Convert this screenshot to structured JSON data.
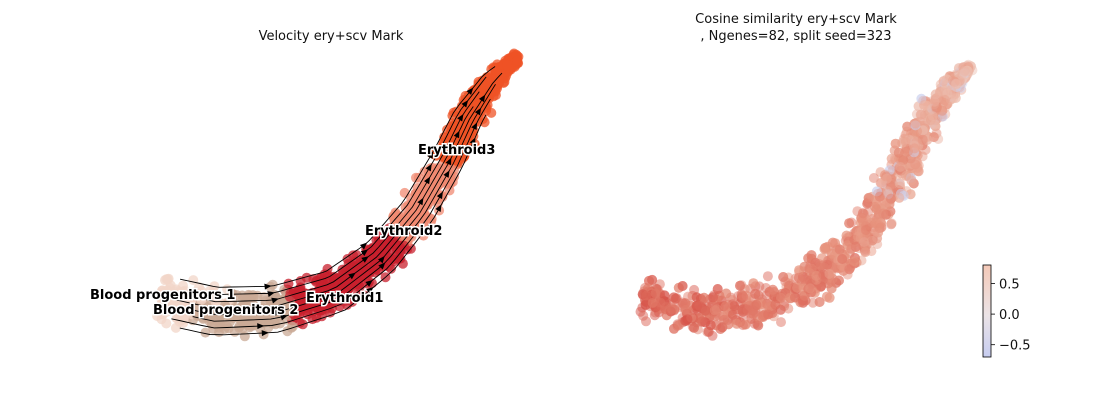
{
  "chart_data": [
    {
      "type": "scatter",
      "subtype": "velocity-streamline-embedding",
      "title": "Velocity ery+scv Mark",
      "xlabel": "",
      "ylabel": "",
      "axes_visible": false,
      "grid": false,
      "clusters": [
        {
          "name": "Blood progenitors 1",
          "color": "#f2d6c8"
        },
        {
          "name": "Blood progenitors 2",
          "color": "#c9a996"
        },
        {
          "name": "Erythroid1",
          "color": "#c8202e"
        },
        {
          "name": "Erythroid2",
          "color": "#f08a72"
        },
        {
          "name": "Erythroid3",
          "color": "#ef5326"
        }
      ]
    },
    {
      "type": "scatter",
      "subtype": "embedding-colored-by-value",
      "title_lines": [
        "Cosine similarity ery+scv Mark",
        ", Ngenes=82, split seed=323"
      ],
      "xlabel": "",
      "ylabel": "",
      "axes_visible": false,
      "grid": false,
      "colorbar": {
        "colormap": "coolwarm",
        "range": [
          -0.7,
          0.8
        ],
        "ticks": [
          0.5,
          0.0,
          -0.5
        ],
        "tick_labels": [
          "0.5",
          "0.0",
          "−0.5"
        ]
      }
    }
  ]
}
